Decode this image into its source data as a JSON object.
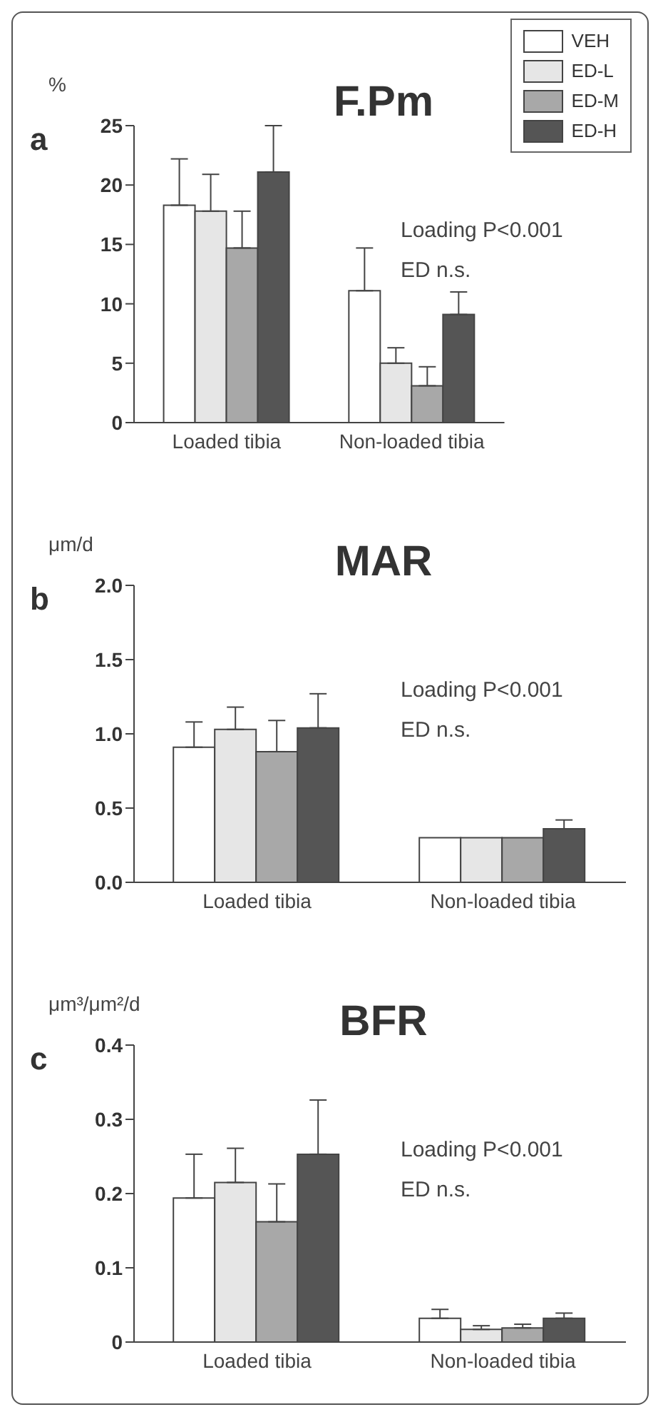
{
  "chart_data": [
    {
      "type": "bar",
      "title": "F.Pm",
      "ylabel": "%",
      "annotations": [
        "a",
        "Loading P<0.001",
        "ED n.s."
      ],
      "categories": [
        "Loaded tibia",
        "Non-loaded tibia"
      ],
      "series": [
        {
          "name": "VEH",
          "color": "#ffffff",
          "values": [
            18.3,
            11.1
          ],
          "errors": [
            [
              18.3,
              22.2
            ],
            [
              11.1,
              14.7
            ]
          ]
        },
        {
          "name": "ED-L",
          "color": "#e6e6e6",
          "values": [
            17.8,
            5.0
          ],
          "errors": [
            [
              17.8,
              20.9
            ],
            [
              5.0,
              6.3
            ]
          ]
        },
        {
          "name": "ED-M",
          "color": "#a8a8a8",
          "values": [
            14.7,
            3.1
          ],
          "errors": [
            [
              14.7,
              17.8
            ],
            [
              3.1,
              4.7
            ]
          ]
        },
        {
          "name": "ED-H",
          "color": "#555555",
          "values": [
            21.1,
            9.1
          ],
          "errors": [
            [
              21.1,
              25.0
            ],
            [
              9.1,
              11.0
            ]
          ]
        }
      ],
      "ylim": [
        0,
        25
      ],
      "yticks": [
        0,
        5,
        10,
        15,
        20,
        25
      ],
      "legend": "top right"
    },
    {
      "type": "bar",
      "title": "MAR",
      "ylabel": "μm/d",
      "annotations": [
        "b",
        "Loading P<0.001",
        "ED n.s."
      ],
      "categories": [
        "Loaded tibia",
        "Non-loaded tibia"
      ],
      "series": [
        {
          "color": "#ffffff",
          "values": [
            0.91,
            0.3
          ],
          "errors": [
            [
              0.91,
              1.08
            ],
            null
          ]
        },
        {
          "color": "#e6e6e6",
          "values": [
            1.03,
            0.3
          ],
          "errors": [
            [
              1.03,
              1.18
            ],
            null
          ]
        },
        {
          "color": "#a8a8a8",
          "values": [
            0.88,
            0.3
          ],
          "errors": [
            [
              0.88,
              1.09
            ],
            null
          ]
        },
        {
          "color": "#555555",
          "values": [
            1.04,
            0.36
          ],
          "errors": [
            [
              1.04,
              1.27
            ],
            [
              0.36,
              0.42
            ]
          ]
        }
      ],
      "ylim": [
        0,
        2
      ],
      "yticks": [
        {
          "value": 0,
          "label": "0.0"
        },
        {
          "value": 0.5,
          "label": "0.5"
        },
        {
          "value": 1,
          "label": "1.0"
        },
        {
          "value": 1.5,
          "label": "1.5"
        },
        {
          "value": 2,
          "label": "2.0"
        }
      ]
    },
    {
      "type": "bar",
      "title": "BFR",
      "ylabel": "μm³/μm²/d",
      "annotations": [
        "c",
        "Loading P<0.001",
        "ED n.s."
      ],
      "categories": [
        "Loaded tibia",
        "Non-loaded tibia"
      ],
      "series": [
        {
          "color": "#ffffff",
          "values": [
            0.194,
            0.032
          ],
          "errors": [
            [
              0.194,
              0.253
            ],
            [
              0.032,
              0.044
            ]
          ]
        },
        {
          "color": "#e6e6e6",
          "values": [
            0.215,
            0.017
          ],
          "errors": [
            [
              0.215,
              0.261
            ],
            [
              0.017,
              0.022
            ]
          ]
        },
        {
          "color": "#a8a8a8",
          "values": [
            0.162,
            0.019
          ],
          "errors": [
            [
              0.162,
              0.213
            ],
            [
              0.019,
              0.024
            ]
          ]
        },
        {
          "color": "#555555",
          "values": [
            0.253,
            0.032
          ],
          "errors": [
            [
              0.253,
              0.326
            ],
            [
              0.032,
              0.039
            ]
          ]
        }
      ],
      "ylim": [
        0,
        0.4
      ],
      "yticks": [
        0,
        0.1,
        0.2,
        0.3,
        0.4
      ]
    }
  ]
}
